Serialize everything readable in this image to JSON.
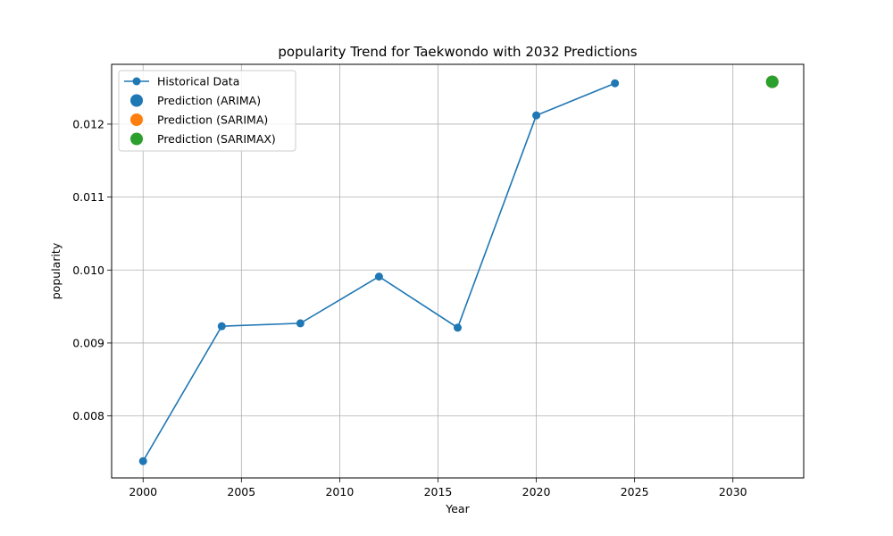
{
  "chart_data": {
    "type": "line",
    "title": "popularity Trend for Taekwondo with 2032 Predictions",
    "xlabel": "Year",
    "ylabel": "popularity",
    "xlim": [
      1998.4,
      2033.6
    ],
    "ylim": [
      0.00715,
      0.01282
    ],
    "x_ticks": [
      2000,
      2005,
      2010,
      2015,
      2020,
      2025,
      2030
    ],
    "y_ticks": [
      0.008,
      0.009,
      0.01,
      0.011,
      0.012
    ],
    "y_tick_labels": [
      "0.008",
      "0.009",
      "0.010",
      "0.011",
      "0.012"
    ],
    "grid": true,
    "legend_position": "top-left",
    "series": [
      {
        "name": "Historical Data",
        "kind": "line-marker",
        "color": "#1f77b4",
        "x": [
          2000,
          2004,
          2008,
          2012,
          2016,
          2020,
          2024
        ],
        "y": [
          0.00738,
          0.00923,
          0.00927,
          0.00991,
          0.00921,
          0.01212,
          0.01256
        ]
      },
      {
        "name": "Prediction (ARIMA)",
        "kind": "point",
        "color": "#1f77b4",
        "x": [
          2032
        ],
        "y": [
          0.01258
        ]
      },
      {
        "name": "Prediction (SARIMA)",
        "kind": "point",
        "color": "#ff7f0e",
        "x": [
          2032
        ],
        "y": [
          0.01258
        ]
      },
      {
        "name": "Prediction (SARIMAX)",
        "kind": "point",
        "color": "#2ca02c",
        "x": [
          2032
        ],
        "y": [
          0.01258
        ]
      }
    ]
  }
}
